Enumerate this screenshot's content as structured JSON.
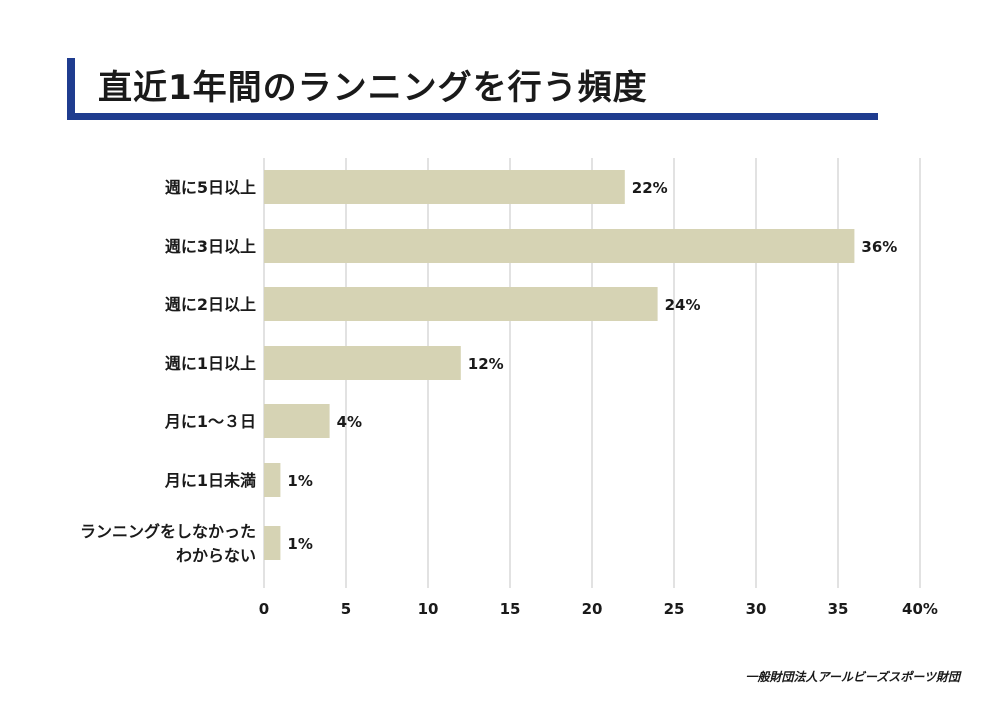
{
  "title": "直近1年間のランニングを行う頻度",
  "source": "一般財団法人アールビーズスポーツ財団",
  "colors": {
    "bar": "#d6d3b4",
    "grid": "#d9d9d9",
    "accent": "#1f3c8f",
    "text": "#1a1a1a"
  },
  "chart_data": {
    "type": "bar",
    "orientation": "horizontal",
    "categories": [
      [
        "週に5日以上"
      ],
      [
        "週に3日以上"
      ],
      [
        "週に2日以上"
      ],
      [
        "週に1日以上"
      ],
      [
        "月に1～３日"
      ],
      [
        "月に1日未満"
      ],
      [
        "ランニングをしなかった",
        "わからない"
      ]
    ],
    "values": [
      22,
      36,
      24,
      12,
      4,
      1,
      1
    ],
    "value_labels": [
      "22%",
      "36%",
      "24%",
      "12%",
      "4%",
      "1%",
      "1%"
    ],
    "xlim": [
      0,
      40
    ],
    "xticks": [
      0,
      5,
      10,
      15,
      20,
      25,
      30,
      35,
      40
    ],
    "xtick_labels": [
      "0",
      "5",
      "10",
      "15",
      "20",
      "25",
      "30",
      "35",
      "40%"
    ],
    "grid": true,
    "legend": "none"
  }
}
